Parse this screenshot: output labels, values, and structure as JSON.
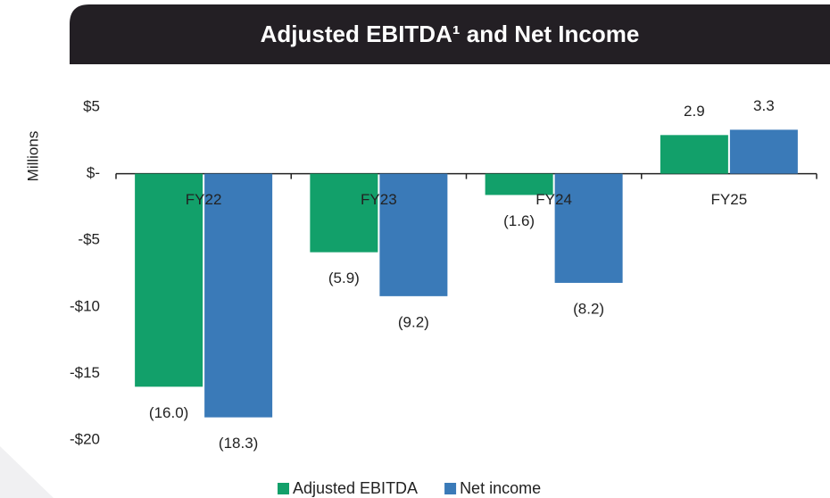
{
  "chart_data": {
    "type": "bar",
    "title": "Adjusted EBITDA¹ and Net Income",
    "y_label": "Millions",
    "categories": [
      "FY22",
      "FY23",
      "FY24",
      "FY25"
    ],
    "series": [
      {
        "name": "Adjusted EBITDA",
        "color": "#12a06a",
        "values": [
          -16.0,
          -5.9,
          -1.6,
          2.9
        ],
        "value_labels": [
          "(16.0)",
          "(5.9)",
          "(1.6)",
          "2.9"
        ]
      },
      {
        "name": "Net income",
        "color": "#3a7ab8",
        "values": [
          -18.3,
          -9.2,
          -8.2,
          3.3
        ],
        "value_labels": [
          "(18.3)",
          "(9.2)",
          "(8.2)",
          "3.3"
        ]
      }
    ],
    "ylim": [
      -20,
      5
    ],
    "yticks": [
      {
        "value": 5,
        "label": "$5"
      },
      {
        "value": 0,
        "label": "$-"
      },
      {
        "value": -5,
        "label": "-$5"
      },
      {
        "value": -10,
        "label": "-$10"
      },
      {
        "value": -15,
        "label": "-$15"
      },
      {
        "value": -20,
        "label": "-$20"
      }
    ],
    "grid": false,
    "legend": "bottom"
  }
}
